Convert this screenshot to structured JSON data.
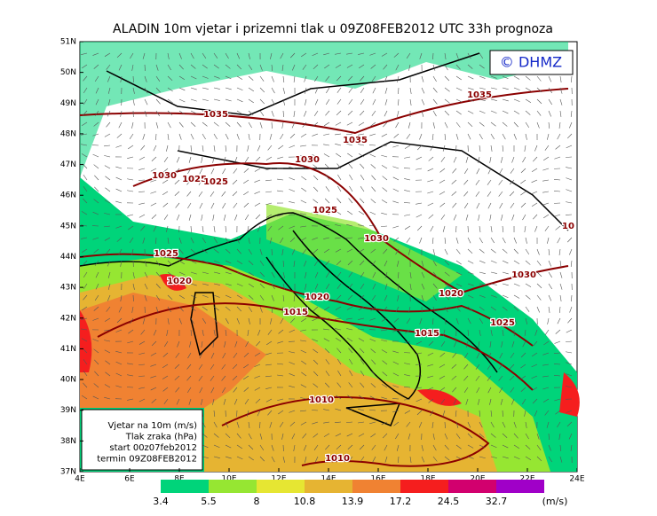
{
  "title": "ALADIN 10m vjetar i prizemni tlak u 09Z08FEB2012 UTC 33h prognoza",
  "logo": "© DHMZ",
  "lat_labels": [
    "51N",
    "50N",
    "49N",
    "48N",
    "47N",
    "46N",
    "45N",
    "44N",
    "43N",
    "42N",
    "41N",
    "40N",
    "39N",
    "38N",
    "37N"
  ],
  "lon_labels": [
    "4E",
    "6E",
    "8E",
    "10E",
    "12E",
    "14E",
    "16E",
    "18E",
    "20E",
    "22E",
    "24E"
  ],
  "info_box": [
    "Vjetar na 10m (m/s)",
    "Tlak zraka (hPa)",
    "start 00z07feb2012",
    "termin 09Z08FEB2012"
  ],
  "colorbar": {
    "labels": [
      "3.4",
      "5.5",
      "8",
      "10.8",
      "13.9",
      "17.2",
      "24.5",
      "32.7"
    ],
    "unit": "(m/s)",
    "colors": [
      "#00d47a",
      "#96e632",
      "#e6e632",
      "#e6b432",
      "#f08232",
      "#f51e1e",
      "#d2006e",
      "#a000c8"
    ]
  },
  "isobar_labels": [
    "1035",
    "1035",
    "1035",
    "1030",
    "1030",
    "1025",
    "1025",
    "1025",
    "1030",
    "1025",
    "1020",
    "1020",
    "1015",
    "1020",
    "1030",
    "1025",
    "1015",
    "1010",
    "1010",
    "10"
  ]
}
